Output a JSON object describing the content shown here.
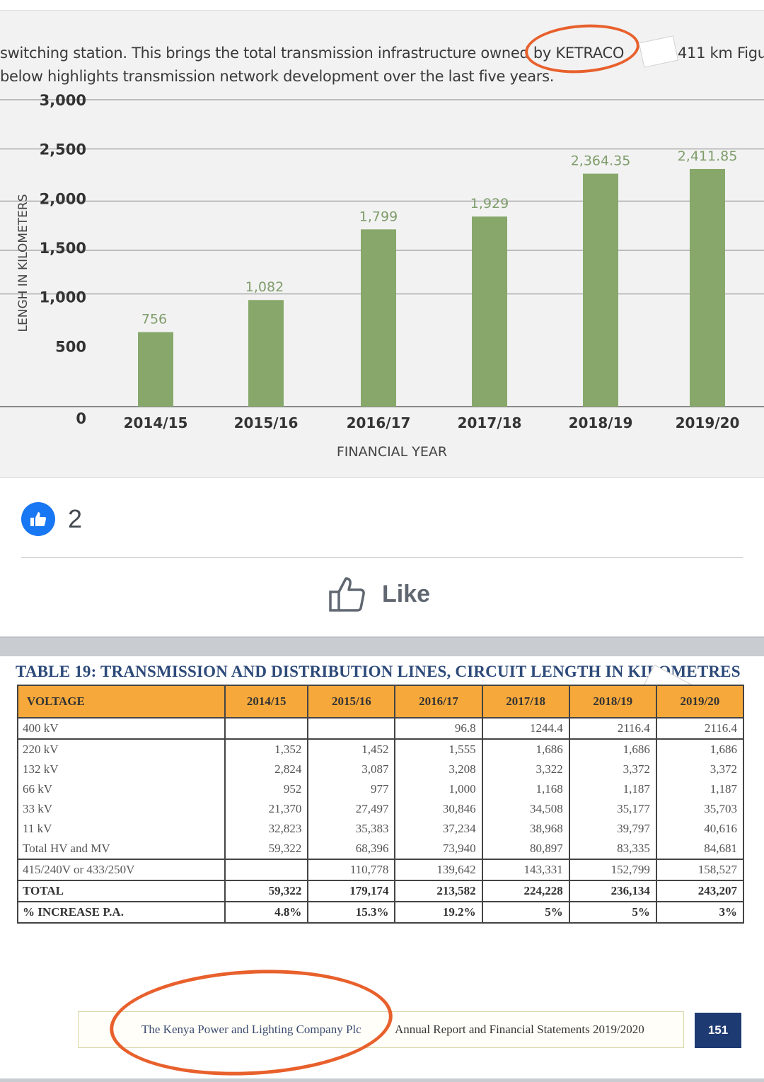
{
  "post": {
    "doc_line1": "switching station. This brings the total transmission infrastructure owned by KETRACO",
    "doc_line1_tail": "411 km Figu",
    "doc_line2": "below highlights transmission network development over the last five years.",
    "like_count": "2",
    "like_button_label": "Like"
  },
  "chart_data": {
    "type": "bar",
    "categories": [
      "2014/15",
      "2015/16",
      "2016/17",
      "2017/18",
      "2018/19",
      "2019/20"
    ],
    "values": [
      756,
      1082,
      1799,
      1929,
      2364.35,
      2411.85
    ],
    "value_labels": [
      "756",
      "1,082",
      "1,799",
      "1,929",
      "2,364.35",
      "2,411.85"
    ],
    "ylabel": "LENGH IN KILOMETERS",
    "xlabel": "FINANCIAL YEAR",
    "yticks": [
      "0",
      "500",
      "1,000",
      "1,500",
      "2,000",
      "2,500",
      "3,000"
    ],
    "ylim": [
      0,
      3000
    ],
    "bar_color": "#87a86a",
    "label_color": "#7f9d6b"
  },
  "table": {
    "title": "TABLE 19: TRANSMISSION AND DISTRIBUTION LINES, CIRCUIT LENGTH IN KILOMETRES",
    "headers": [
      "VOLTAGE",
      "2014/15",
      "2015/16",
      "2016/17",
      "2017/18",
      "2018/19",
      "2019/20"
    ],
    "rows": [
      [
        "400 kV",
        "",
        "",
        "96.8",
        "1244.4",
        "2116.4",
        "2116.4"
      ],
      [
        "220 kV",
        "1,352",
        "1,452",
        "1,555",
        "1,686",
        "1,686",
        "1,686"
      ],
      [
        "132 kV",
        "2,824",
        "3,087",
        "3,208",
        "3,322",
        "3,372",
        "3,372"
      ],
      [
        "66 kV",
        "952",
        "977",
        "1,000",
        "1,168",
        "1,187",
        "1,187"
      ],
      [
        "33 kV",
        "21,370",
        "27,497",
        "30,846",
        "34,508",
        "35,177",
        "35,703"
      ],
      [
        "11 kV",
        "32,823",
        "35,383",
        "37,234",
        "38,968",
        "39,797",
        "40,616"
      ],
      [
        "Total HV and MV",
        "59,322",
        "68,396",
        "73,940",
        "80,897",
        "83,335",
        "84,681"
      ],
      [
        "415/240V or 433/250V",
        "",
        "110,778",
        "139,642",
        "143,331",
        "152,799",
        "158,527"
      ],
      [
        "TOTAL",
        "59,322",
        "179,174",
        "213,582",
        "224,228",
        "236,134",
        "243,207"
      ],
      [
        "% INCREASE P.A.",
        "4.8%",
        "15.3%",
        "19.2%",
        "5%",
        "5%",
        "3%"
      ]
    ]
  },
  "footer": {
    "company": "The Kenya Power and Lighting Company Plc",
    "report": "Annual Report and Financial Statements 2019/2020",
    "page": "151"
  },
  "colors": {
    "facebook_blue": "#1877f2",
    "annotation_orange": "#e8602c",
    "table_header": "#f6a83b",
    "title_blue": "#2d4a7a"
  }
}
